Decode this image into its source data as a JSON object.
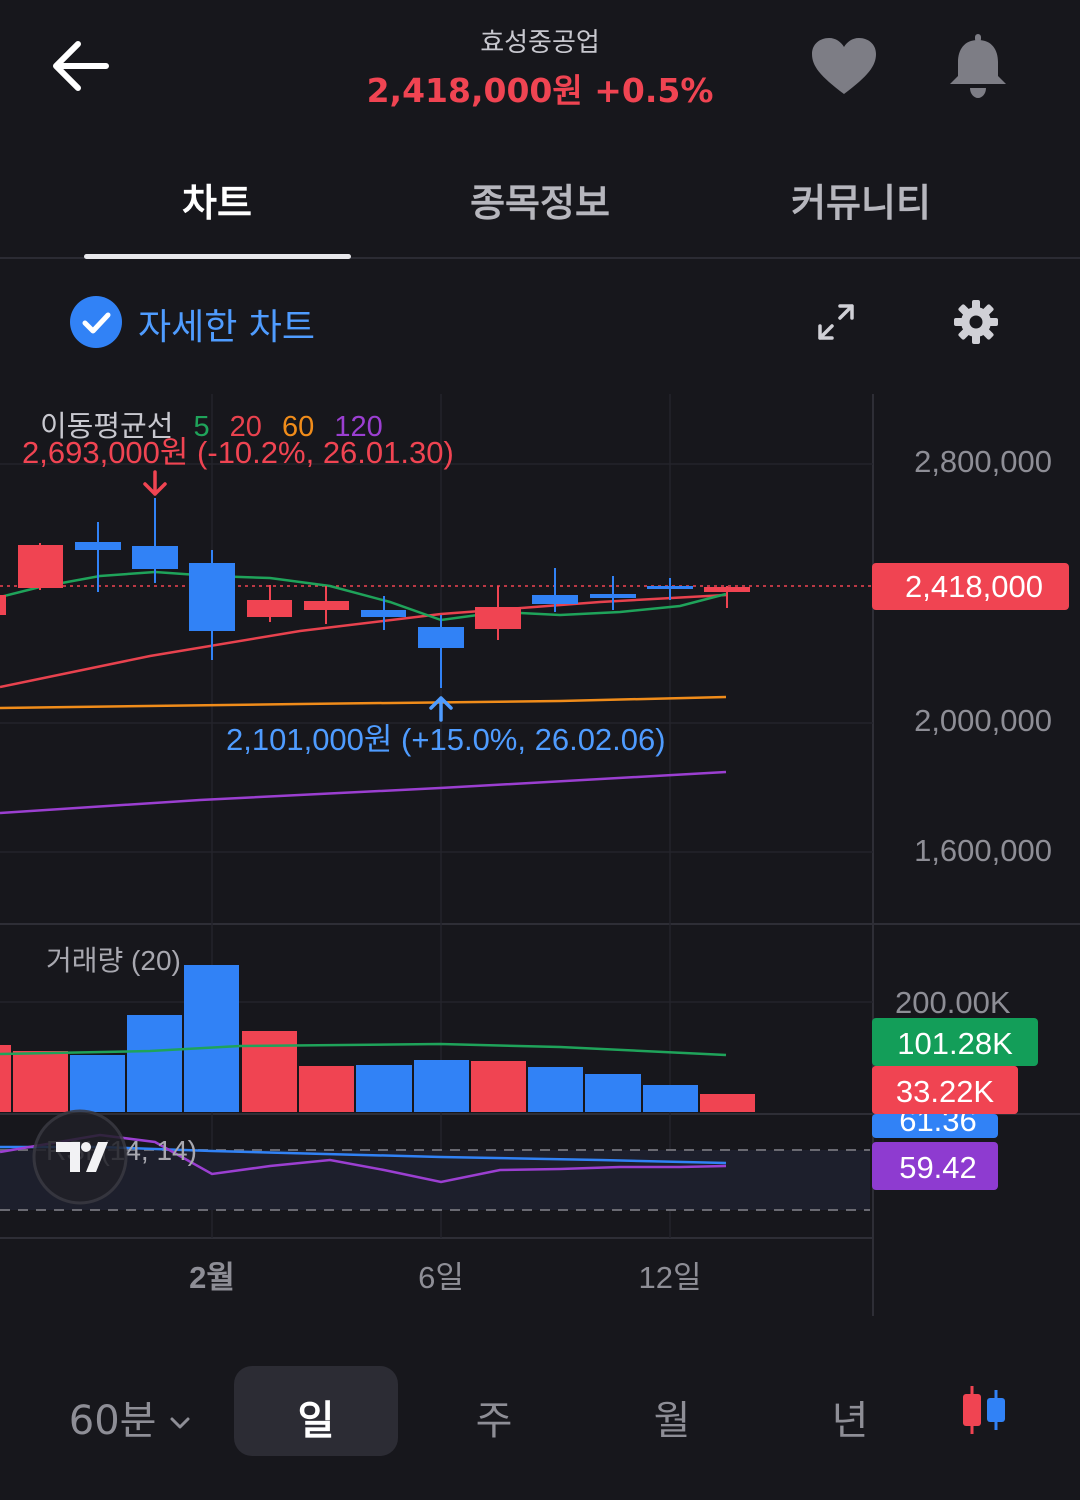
{
  "header": {
    "stock_name": "효성중공업",
    "price_line": "2,418,000원 +0.5%",
    "icons": [
      "back-arrow-icon",
      "heart-icon",
      "bell-icon"
    ]
  },
  "tabs": [
    {
      "label": "차트",
      "active": true
    },
    {
      "label": "종목정보",
      "active": false
    },
    {
      "label": "커뮤니티",
      "active": false
    }
  ],
  "toolbar": {
    "detail_label": "자세한 차트",
    "detail_checked": true
  },
  "chart": {
    "ma_legend": {
      "title": "이동평균선",
      "periods": [
        "5",
        "20",
        "60",
        "120"
      ]
    },
    "high_annotation": "2,693,000원 (-10.2%, 26.01.30)",
    "low_annotation": "2,101,000원 (+15.0%, 26.02.06)",
    "price_ticks": [
      "2,800,000",
      "2,000,000",
      "1,600,000"
    ],
    "current_price_label": "2,418,000",
    "volume_title": "거래량 (20)",
    "volume_ticks": [
      "200.00K"
    ],
    "volume_ma_label": "101.28K",
    "volume_current_label": "33.22K",
    "rsi_title": "RSI (14, 14)",
    "rsi_partial_label": "61.36",
    "rsi_signal_label": "59.42",
    "x_labels": [
      "2월",
      "6일",
      "12일"
    ],
    "colors": {
      "up": "#f04452",
      "down": "#3182f6",
      "ma5": "#1fa35a",
      "ma20": "#e8424e",
      "ma60": "#f08c1a",
      "ma120": "#9b3fd1"
    }
  },
  "bottom_bar": {
    "interval_dropdown": "60분",
    "periods": [
      "일",
      "주",
      "월",
      "년"
    ],
    "selected": "일"
  }
}
